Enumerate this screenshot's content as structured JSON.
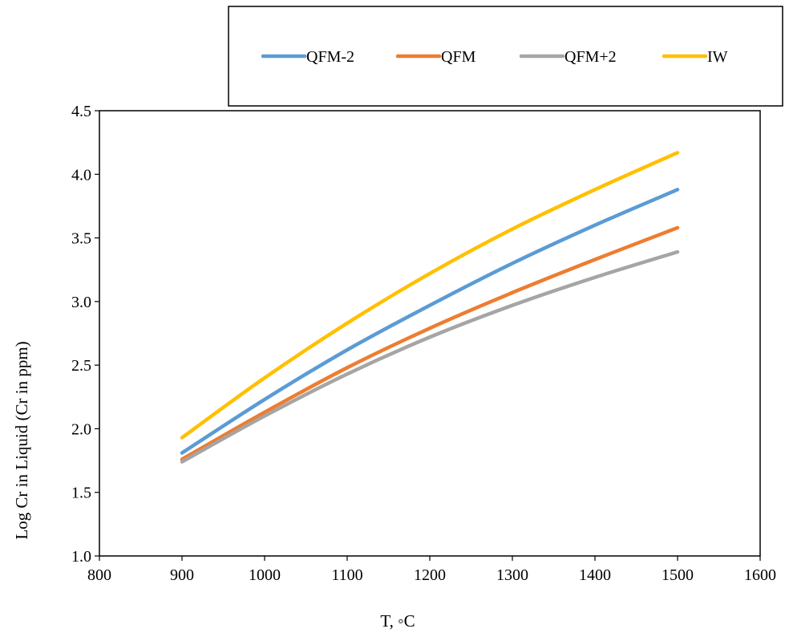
{
  "chart_data": {
    "type": "line",
    "xlabel": "T, ◦C",
    "ylabel": "Log Cr  in Liquid  (Cr in ppm)",
    "xlim": [
      800,
      1600
    ],
    "ylim": [
      1.0,
      4.5
    ],
    "x_ticks": [
      800,
      900,
      1000,
      1100,
      1200,
      1300,
      1400,
      1500,
      1600
    ],
    "y_ticks": [
      "1.0",
      "1.5",
      "2.0",
      "2.5",
      "3.0",
      "3.5",
      "4.0",
      "4.5"
    ],
    "grid": false,
    "legend_position": "top",
    "x": [
      900,
      1000,
      1100,
      1200,
      1300,
      1400,
      1500
    ],
    "series": [
      {
        "name": "QFM-2",
        "color": "#5b9bd5",
        "values": [
          1.81,
          2.23,
          2.62,
          2.97,
          3.3,
          3.6,
          3.88
        ]
      },
      {
        "name": "QFM",
        "color": "#ed7d31",
        "values": [
          1.76,
          2.13,
          2.48,
          2.79,
          3.07,
          3.33,
          3.58
        ]
      },
      {
        "name": "QFM+2",
        "color": "#a5a5a5",
        "values": [
          1.74,
          2.1,
          2.43,
          2.72,
          2.97,
          3.19,
          3.39
        ]
      },
      {
        "name": "IW",
        "color": "#ffc000",
        "values": [
          1.93,
          2.4,
          2.83,
          3.22,
          3.57,
          3.88,
          4.17
        ]
      }
    ]
  }
}
